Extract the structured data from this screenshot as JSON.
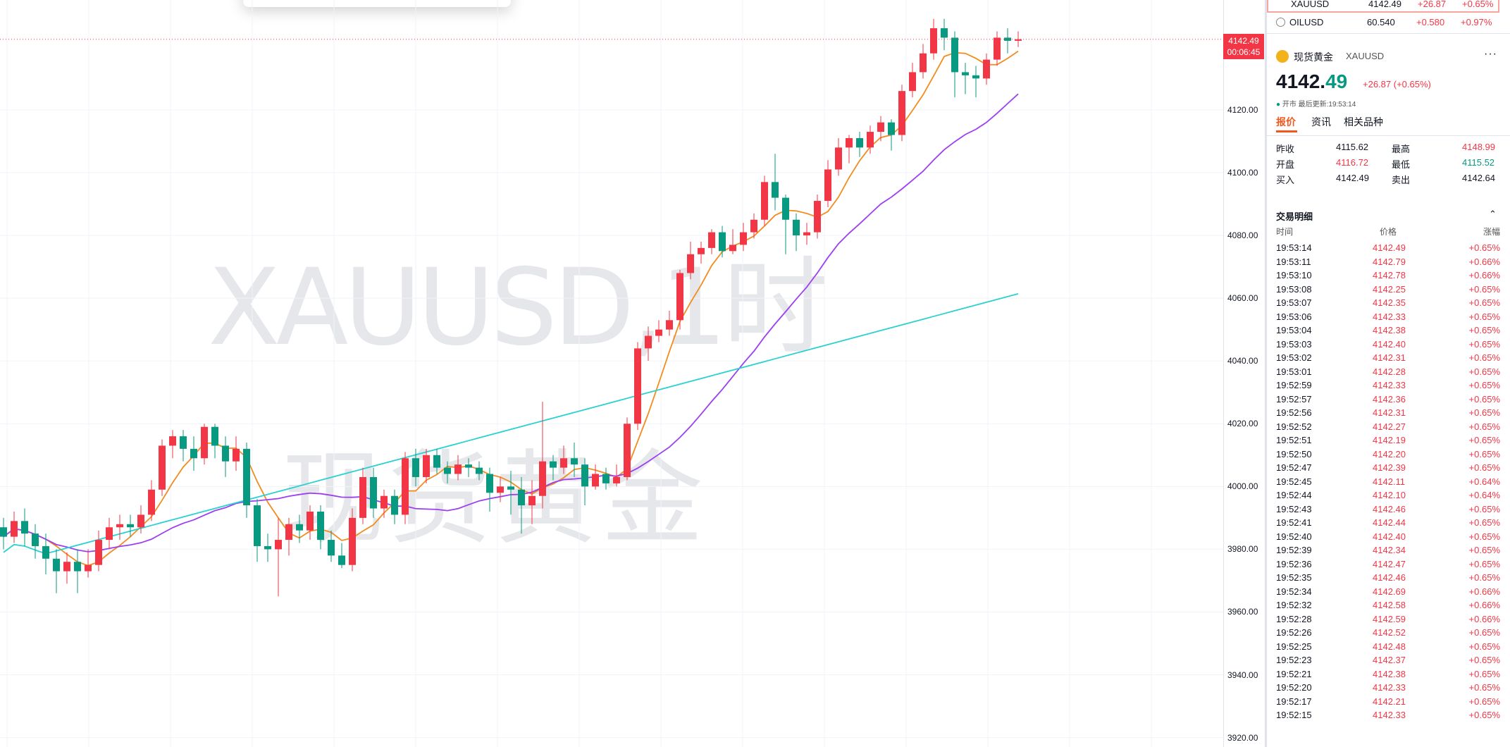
{
  "watermark": {
    "symbol": "XAUUSD,1时",
    "name": "现货黄金"
  },
  "price_tag": {
    "price": "4142.49",
    "countdown": "00:06:45"
  },
  "y_axis": {
    "ticks": [
      "4120.00",
      "4100.00",
      "4080.00",
      "4060.00",
      "4040.00",
      "4020.00",
      "4000.00",
      "3980.00",
      "3960.00",
      "3940.00",
      "3920.00"
    ],
    "min": 3917,
    "max": 4155
  },
  "candles": [
    [
      3987,
      3984,
      3990,
      3980
    ],
    [
      3984,
      3989,
      3992,
      3982
    ],
    [
      3989,
      3985,
      3993,
      3981
    ],
    [
      3985,
      3981,
      3988,
      3977
    ],
    [
      3981,
      3977,
      3985,
      3972
    ],
    [
      3977,
      3973,
      3980,
      3966
    ],
    [
      3973,
      3976,
      3979,
      3969
    ],
    [
      3976,
      3973,
      3980,
      3966
    ],
    [
      3973,
      3975,
      3980,
      3971
    ],
    [
      3975,
      3983,
      3986,
      3973
    ],
    [
      3983,
      3987,
      3990,
      3980
    ],
    [
      3987,
      3988,
      3991,
      3983
    ],
    [
      3988,
      3987,
      3991,
      3984
    ],
    [
      3987,
      3991,
      3994,
      3985
    ],
    [
      3991,
      3999,
      4002,
      3989
    ],
    [
      3999,
      4013,
      4015,
      3997
    ],
    [
      4013,
      4016,
      4018,
      4009
    ],
    [
      4016,
      4012,
      4018,
      4008
    ],
    [
      4012,
      4009,
      4016,
      4005
    ],
    [
      4009,
      4019,
      4020,
      4007
    ],
    [
      4019,
      4013,
      4020,
      4009
    ],
    [
      4013,
      4008,
      4016,
      4003
    ],
    [
      4008,
      4012,
      4016,
      4005
    ],
    [
      4012,
      3994,
      4014,
      3990
    ],
    [
      3994,
      3981,
      3996,
      3976
    ],
    [
      3981,
      3980,
      3985,
      3976
    ],
    [
      3980,
      3983,
      3990,
      3965
    ],
    [
      3983,
      3988,
      3990,
      3978
    ],
    [
      3988,
      3986,
      3991,
      3982
    ],
    [
      3986,
      3992,
      3994,
      3983
    ],
    [
      3992,
      3983,
      3994,
      3980
    ],
    [
      3983,
      3978,
      3986,
      3976
    ],
    [
      3978,
      3975,
      3982,
      3974
    ],
    [
      3975,
      3990,
      3993,
      3973
    ],
    [
      3990,
      4003,
      4006,
      3988
    ],
    [
      4003,
      3993,
      4006,
      3990
    ],
    [
      3993,
      3997,
      3999,
      3990
    ],
    [
      3997,
      3991,
      3999,
      3988
    ],
    [
      3991,
      4009,
      4011,
      3988
    ],
    [
      4009,
      4003,
      4012,
      4000
    ],
    [
      4003,
      4010,
      4012,
      4001
    ],
    [
      4010,
      4006,
      4012,
      4004
    ],
    [
      4006,
      4004,
      4008,
      4001
    ],
    [
      4004,
      4007,
      4010,
      4002
    ],
    [
      4007,
      4006,
      4009,
      4003
    ],
    [
      4006,
      4004,
      4008,
      4002
    ],
    [
      4004,
      3998,
      4006,
      3992
    ],
    [
      3998,
      4000,
      4003,
      3995
    ],
    [
      4000,
      3999,
      4005,
      3991
    ],
    [
      3999,
      3994,
      4003,
      3985
    ],
    [
      3994,
      3997,
      4002,
      3988
    ],
    [
      3997,
      4008,
      4027,
      3993
    ],
    [
      4008,
      4006,
      4010,
      4002
    ],
    [
      4006,
      4009,
      4013,
      4004
    ],
    [
      4009,
      4007,
      4014,
      4003
    ],
    [
      4007,
      4000,
      4009,
      3994
    ],
    [
      4000,
      4004,
      4007,
      3999
    ],
    [
      4004,
      4001,
      4006,
      3999
    ],
    [
      4001,
      4003,
      4007,
      4000
    ],
    [
      4003,
      4020,
      4022,
      4002
    ],
    [
      4020,
      4044,
      4046,
      4018
    ],
    [
      4044,
      4048,
      4051,
      4040
    ],
    [
      4048,
      4050,
      4053,
      4046
    ],
    [
      4050,
      4053,
      4056,
      4048
    ],
    [
      4053,
      4068,
      4069,
      4050
    ],
    [
      4068,
      4074,
      4078,
      4066
    ],
    [
      4074,
      4076,
      4078,
      4071
    ],
    [
      4076,
      4081,
      4082,
      4074
    ],
    [
      4081,
      4075,
      4083,
      4073
    ],
    [
      4075,
      4077,
      4082,
      4074
    ],
    [
      4077,
      4081,
      4084,
      4075
    ],
    [
      4081,
      4085,
      4087,
      4079
    ],
    [
      4085,
      4097,
      4099,
      4083
    ],
    [
      4097,
      4092,
      4106,
      4088
    ],
    [
      4092,
      4085,
      4093,
      4074
    ],
    [
      4085,
      4080,
      4087,
      4075
    ],
    [
      4080,
      4081,
      4084,
      4077
    ],
    [
      4081,
      4091,
      4093,
      4079
    ],
    [
      4091,
      4101,
      4104,
      4089
    ],
    [
      4101,
      4108,
      4111,
      4099
    ],
    [
      4108,
      4111,
      4112,
      4103
    ],
    [
      4111,
      4108,
      4113,
      4105
    ],
    [
      4108,
      4113,
      4115,
      4106
    ],
    [
      4113,
      4116,
      4118,
      4110
    ],
    [
      4116,
      4112,
      4117,
      4107
    ],
    [
      4112,
      4126,
      4128,
      4110
    ],
    [
      4126,
      4132,
      4135,
      4124
    ],
    [
      4132,
      4138,
      4141,
      4130
    ],
    [
      4138,
      4146,
      4149,
      4136
    ],
    [
      4146,
      4143,
      4149,
      4139
    ],
    [
      4143,
      4132,
      4145,
      4124
    ],
    [
      4132,
      4131,
      4135,
      4125
    ],
    [
      4131,
      4130,
      4134,
      4124
    ],
    [
      4130,
      4136,
      4138,
      4128
    ],
    [
      4136,
      4143,
      4145,
      4134
    ],
    [
      4143,
      4142,
      4146,
      4138
    ],
    [
      4142,
      4142.49,
      4145,
      4140
    ]
  ],
  "watchlist": [
    {
      "symbol": "XAUUSD",
      "price": "4142.49",
      "change": "+26.87",
      "percent": "+0.65%"
    },
    {
      "symbol": "OILUSD",
      "price": "60.540",
      "change": "+0.580",
      "percent": "+0.97%"
    }
  ],
  "symbol_info": {
    "name": "现货黄金",
    "code": "XAUUSD",
    "price_int": "4142.",
    "price_dec": "49",
    "change": "+26.87 (+0.65%)",
    "status_dot": "●",
    "status": "开市 最后更新:19:53:14",
    "more": "···"
  },
  "tabs": [
    "报价",
    "资讯",
    "相关品种"
  ],
  "stats": {
    "prev_close_label": "昨收",
    "prev_close": "4115.62",
    "high_label": "最高",
    "high": "4148.99",
    "open_label": "开盘",
    "open": "4116.72",
    "low_label": "最低",
    "low": "4115.52",
    "bid_label": "买入",
    "bid": "4142.49",
    "ask_label": "卖出",
    "ask": "4142.64"
  },
  "trades_title": "交易明细",
  "collapse_icon": "⌃",
  "trade_headers": [
    "时间",
    "价格",
    "涨幅"
  ],
  "trades": [
    [
      "19:53:14",
      "4142.49",
      "+0.65%"
    ],
    [
      "19:53:11",
      "4142.79",
      "+0.66%"
    ],
    [
      "19:53:10",
      "4142.78",
      "+0.66%"
    ],
    [
      "19:53:08",
      "4142.25",
      "+0.65%"
    ],
    [
      "19:53:07",
      "4142.35",
      "+0.65%"
    ],
    [
      "19:53:06",
      "4142.33",
      "+0.65%"
    ],
    [
      "19:53:04",
      "4142.38",
      "+0.65%"
    ],
    [
      "19:53:03",
      "4142.40",
      "+0.65%"
    ],
    [
      "19:53:02",
      "4142.31",
      "+0.65%"
    ],
    [
      "19:53:01",
      "4142.28",
      "+0.65%"
    ],
    [
      "19:52:59",
      "4142.33",
      "+0.65%"
    ],
    [
      "19:52:57",
      "4142.36",
      "+0.65%"
    ],
    [
      "19:52:56",
      "4142.31",
      "+0.65%"
    ],
    [
      "19:52:52",
      "4142.27",
      "+0.65%"
    ],
    [
      "19:52:51",
      "4142.19",
      "+0.65%"
    ],
    [
      "19:52:50",
      "4142.20",
      "+0.65%"
    ],
    [
      "19:52:47",
      "4142.39",
      "+0.65%"
    ],
    [
      "19:52:45",
      "4142.11",
      "+0.64%"
    ],
    [
      "19:52:44",
      "4142.10",
      "+0.64%"
    ],
    [
      "19:52:43",
      "4142.46",
      "+0.65%"
    ],
    [
      "19:52:41",
      "4142.44",
      "+0.65%"
    ],
    [
      "19:52:40",
      "4142.40",
      "+0.65%"
    ],
    [
      "19:52:39",
      "4142.34",
      "+0.65%"
    ],
    [
      "19:52:36",
      "4142.47",
      "+0.65%"
    ],
    [
      "19:52:35",
      "4142.46",
      "+0.65%"
    ],
    [
      "19:52:34",
      "4142.69",
      "+0.66%"
    ],
    [
      "19:52:32",
      "4142.58",
      "+0.66%"
    ],
    [
      "19:52:28",
      "4142.59",
      "+0.66%"
    ],
    [
      "19:52:26",
      "4142.52",
      "+0.65%"
    ],
    [
      "19:52:25",
      "4142.48",
      "+0.65%"
    ],
    [
      "19:52:23",
      "4142.37",
      "+0.65%"
    ],
    [
      "19:52:21",
      "4142.38",
      "+0.65%"
    ],
    [
      "19:52:20",
      "4142.33",
      "+0.65%"
    ],
    [
      "19:52:17",
      "4142.21",
      "+0.65%"
    ],
    [
      "19:52:15",
      "4142.33",
      "+0.65%"
    ]
  ],
  "colors": {
    "up": "#f23645",
    "down": "#089981",
    "ma_short": "#f28c1e",
    "ma_mid": "#9c3ff2",
    "ma_long": "#2ad1d1",
    "grid": "#f0f3fa",
    "accent": "#f2581e"
  }
}
